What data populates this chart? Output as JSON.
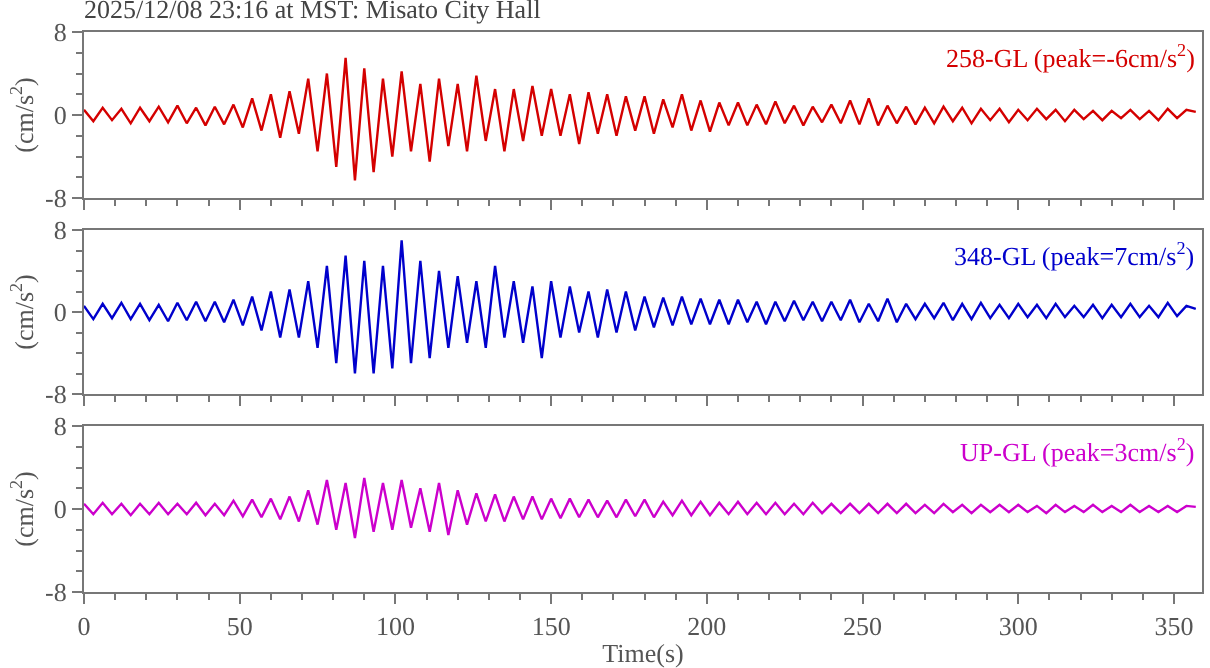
{
  "chart_data": [
    {
      "type": "line",
      "title": "2025/12/08 23:16 at MST: Misato City Hall",
      "ylabel": "(cm/s$^{2}$)",
      "xlim": [
        0,
        359
      ],
      "xticks": [
        0,
        50,
        100,
        150,
        200,
        250,
        300,
        350
      ],
      "ylim": [
        -8,
        8
      ],
      "yticks": [
        -8,
        0,
        8
      ],
      "tick_labels": "y",
      "x": [
        0,
        3,
        6,
        9,
        12,
        15,
        18,
        21,
        24,
        27,
        30,
        33,
        36,
        39,
        42,
        45,
        48,
        51,
        54,
        57,
        60,
        63,
        66,
        69,
        72,
        75,
        78,
        81,
        84,
        87,
        90,
        93,
        96,
        99,
        102,
        105,
        108,
        111,
        114,
        117,
        120,
        123,
        126,
        129,
        132,
        135,
        138,
        141,
        144,
        147,
        150,
        153,
        156,
        159,
        162,
        165,
        168,
        171,
        174,
        177,
        180,
        183,
        186,
        189,
        192,
        195,
        198,
        201,
        204,
        207,
        210,
        213,
        216,
        219,
        222,
        225,
        228,
        231,
        234,
        237,
        240,
        243,
        246,
        249,
        252,
        255,
        258,
        261,
        264,
        267,
        270,
        273,
        276,
        279,
        282,
        285,
        288,
        291,
        294,
        297,
        300,
        303,
        306,
        309,
        312,
        315,
        318,
        321,
        324,
        327,
        330,
        333,
        336,
        339,
        342,
        345,
        348,
        351,
        354,
        357
      ],
      "series": [
        {
          "name": "258-GL (peak=-6cm/s$^{2}$)",
          "color": "#d40000",
          "values": [
            0.5,
            -0.6,
            0.7,
            -0.5,
            0.6,
            -0.8,
            0.7,
            -0.6,
            0.8,
            -0.7,
            0.9,
            -0.8,
            0.7,
            -1.0,
            0.8,
            -0.9,
            1.0,
            -1.2,
            1.6,
            -1.5,
            2.0,
            -2.2,
            2.3,
            -1.8,
            3.5,
            -3.5,
            4.0,
            -5.0,
            5.5,
            -6.3,
            4.5,
            -5.5,
            3.5,
            -4.0,
            4.2,
            -3.5,
            3.0,
            -4.5,
            3.5,
            -3.0,
            3.0,
            -3.5,
            3.8,
            -2.5,
            2.5,
            -3.5,
            2.5,
            -2.5,
            2.8,
            -2.0,
            2.5,
            -2.0,
            2.0,
            -2.8,
            2.2,
            -1.8,
            2.0,
            -2.0,
            1.8,
            -1.5,
            1.8,
            -1.8,
            1.5,
            -1.2,
            2.0,
            -1.5,
            1.4,
            -1.6,
            1.2,
            -1.0,
            1.2,
            -1.0,
            1.0,
            -0.9,
            1.3,
            -0.8,
            0.9,
            -1.0,
            0.8,
            -0.7,
            1.0,
            -0.8,
            1.4,
            -0.9,
            1.6,
            -1.0,
            0.9,
            -0.8,
            0.8,
            -0.9,
            0.7,
            -0.8,
            0.8,
            -0.6,
            0.7,
            -0.8,
            0.6,
            -0.5,
            0.6,
            -0.7,
            0.5,
            -0.5,
            0.6,
            -0.4,
            0.5,
            -0.6,
            0.5,
            -0.4,
            0.4,
            -0.5,
            0.4,
            -0.3,
            0.5,
            -0.4,
            0.4,
            -0.5,
            0.6,
            -0.3,
            0.5,
            0.3
          ]
        }
      ]
    },
    {
      "type": "line",
      "ylabel": "(cm/s$^{2}$)",
      "xlim": [
        0,
        359
      ],
      "xticks": [
        0,
        50,
        100,
        150,
        200,
        250,
        300,
        350
      ],
      "ylim": [
        -8,
        8
      ],
      "yticks": [
        -8,
        0,
        8
      ],
      "tick_labels": "y",
      "x": [
        0,
        3,
        6,
        9,
        12,
        15,
        18,
        21,
        24,
        27,
        30,
        33,
        36,
        39,
        42,
        45,
        48,
        51,
        54,
        57,
        60,
        63,
        66,
        69,
        72,
        75,
        78,
        81,
        84,
        87,
        90,
        93,
        96,
        99,
        102,
        105,
        108,
        111,
        114,
        117,
        120,
        123,
        126,
        129,
        132,
        135,
        138,
        141,
        144,
        147,
        150,
        153,
        156,
        159,
        162,
        165,
        168,
        171,
        174,
        177,
        180,
        183,
        186,
        189,
        192,
        195,
        198,
        201,
        204,
        207,
        210,
        213,
        216,
        219,
        222,
        225,
        228,
        231,
        234,
        237,
        240,
        243,
        246,
        249,
        252,
        255,
        258,
        261,
        264,
        267,
        270,
        273,
        276,
        279,
        282,
        285,
        288,
        291,
        294,
        297,
        300,
        303,
        306,
        309,
        312,
        315,
        318,
        321,
        324,
        327,
        330,
        333,
        336,
        339,
        342,
        345,
        348,
        351,
        354,
        357
      ],
      "series": [
        {
          "name": "348-GL (peak=7cm/s$^{2}$)",
          "color": "#0000cc",
          "values": [
            0.6,
            -0.7,
            0.8,
            -0.6,
            0.9,
            -0.7,
            0.8,
            -0.8,
            0.7,
            -0.9,
            0.9,
            -0.8,
            1.0,
            -0.9,
            1.0,
            -1.0,
            1.2,
            -1.3,
            1.5,
            -1.8,
            2.0,
            -2.5,
            2.2,
            -2.5,
            3.0,
            -3.5,
            4.5,
            -5.0,
            5.5,
            -6.0,
            5.0,
            -6.0,
            4.5,
            -5.5,
            7.0,
            -5.0,
            5.0,
            -4.5,
            4.0,
            -3.5,
            3.5,
            -3.0,
            3.0,
            -3.5,
            4.5,
            -2.5,
            3.0,
            -3.0,
            2.5,
            -4.5,
            3.0,
            -2.5,
            2.5,
            -2.0,
            2.0,
            -2.5,
            2.2,
            -2.0,
            2.0,
            -1.8,
            1.5,
            -1.5,
            1.4,
            -1.3,
            1.5,
            -1.2,
            1.3,
            -1.2,
            1.2,
            -1.2,
            1.2,
            -1.0,
            1.0,
            -1.2,
            1.0,
            -0.9,
            1.1,
            -0.8,
            1.0,
            -0.9,
            1.0,
            -0.8,
            1.2,
            -1.0,
            0.8,
            -0.9,
            1.3,
            -1.0,
            0.8,
            -0.7,
            0.8,
            -0.6,
            0.9,
            -0.8,
            0.8,
            -0.7,
            0.9,
            -0.6,
            0.7,
            -0.6,
            0.8,
            -0.5,
            0.7,
            -0.6,
            0.8,
            -0.5,
            0.6,
            -0.5,
            0.7,
            -0.6,
            0.7,
            -0.5,
            0.8,
            -0.5,
            0.6,
            -0.5,
            0.9,
            -0.4,
            0.6,
            0.3
          ]
        }
      ]
    },
    {
      "type": "line",
      "xlabel": "Time(s)",
      "ylabel": "(cm/s$^{2}$)",
      "xlim": [
        0,
        359
      ],
      "xticks": [
        0,
        50,
        100,
        150,
        200,
        250,
        300,
        350
      ],
      "ylim": [
        -8,
        8
      ],
      "yticks": [
        -8,
        0,
        8
      ],
      "x": [
        0,
        3,
        6,
        9,
        12,
        15,
        18,
        21,
        24,
        27,
        30,
        33,
        36,
        39,
        42,
        45,
        48,
        51,
        54,
        57,
        60,
        63,
        66,
        69,
        72,
        75,
        78,
        81,
        84,
        87,
        90,
        93,
        96,
        99,
        102,
        105,
        108,
        111,
        114,
        117,
        120,
        123,
        126,
        129,
        132,
        135,
        138,
        141,
        144,
        147,
        150,
        153,
        156,
        159,
        162,
        165,
        168,
        171,
        174,
        177,
        180,
        183,
        186,
        189,
        192,
        195,
        198,
        201,
        204,
        207,
        210,
        213,
        216,
        219,
        222,
        225,
        228,
        231,
        234,
        237,
        240,
        243,
        246,
        249,
        252,
        255,
        258,
        261,
        264,
        267,
        270,
        273,
        276,
        279,
        282,
        285,
        288,
        291,
        294,
        297,
        300,
        303,
        306,
        309,
        312,
        315,
        318,
        321,
        324,
        327,
        330,
        333,
        336,
        339,
        342,
        345,
        348,
        351,
        354,
        357
      ],
      "series": [
        {
          "name": "UP-GL (peak=3cm/s$^{2}$)",
          "color": "#cc00cc",
          "values": [
            0.5,
            -0.5,
            0.6,
            -0.5,
            0.5,
            -0.6,
            0.5,
            -0.5,
            0.6,
            -0.5,
            0.5,
            -0.5,
            0.6,
            -0.6,
            0.5,
            -0.6,
            0.8,
            -0.7,
            0.9,
            -0.8,
            1.0,
            -1.0,
            1.2,
            -1.2,
            1.8,
            -1.5,
            2.8,
            -2.0,
            2.5,
            -2.8,
            3.0,
            -2.2,
            2.5,
            -2.0,
            2.8,
            -1.8,
            2.0,
            -2.2,
            2.5,
            -2.5,
            1.8,
            -1.5,
            1.5,
            -1.2,
            1.4,
            -1.2,
            1.2,
            -1.0,
            1.2,
            -1.0,
            1.0,
            -0.9,
            1.0,
            -0.8,
            0.9,
            -0.8,
            0.8,
            -0.8,
            0.9,
            -0.7,
            0.9,
            -0.8,
            0.7,
            -0.6,
            0.8,
            -0.6,
            0.7,
            -0.6,
            0.6,
            -0.5,
            0.7,
            -0.5,
            0.6,
            -0.5,
            0.6,
            -0.5,
            0.5,
            -0.5,
            0.6,
            -0.4,
            0.5,
            -0.4,
            0.5,
            -0.4,
            0.5,
            -0.4,
            0.5,
            -0.4,
            0.5,
            -0.4,
            0.4,
            -0.4,
            0.5,
            -0.3,
            0.4,
            -0.4,
            0.4,
            -0.3,
            0.4,
            -0.3,
            0.4,
            -0.3,
            0.3,
            -0.4,
            0.4,
            -0.3,
            0.3,
            -0.3,
            0.4,
            -0.3,
            0.3,
            -0.3,
            0.4,
            -0.3,
            0.3,
            -0.3,
            0.3,
            -0.3,
            0.3,
            0.2
          ]
        }
      ]
    }
  ]
}
